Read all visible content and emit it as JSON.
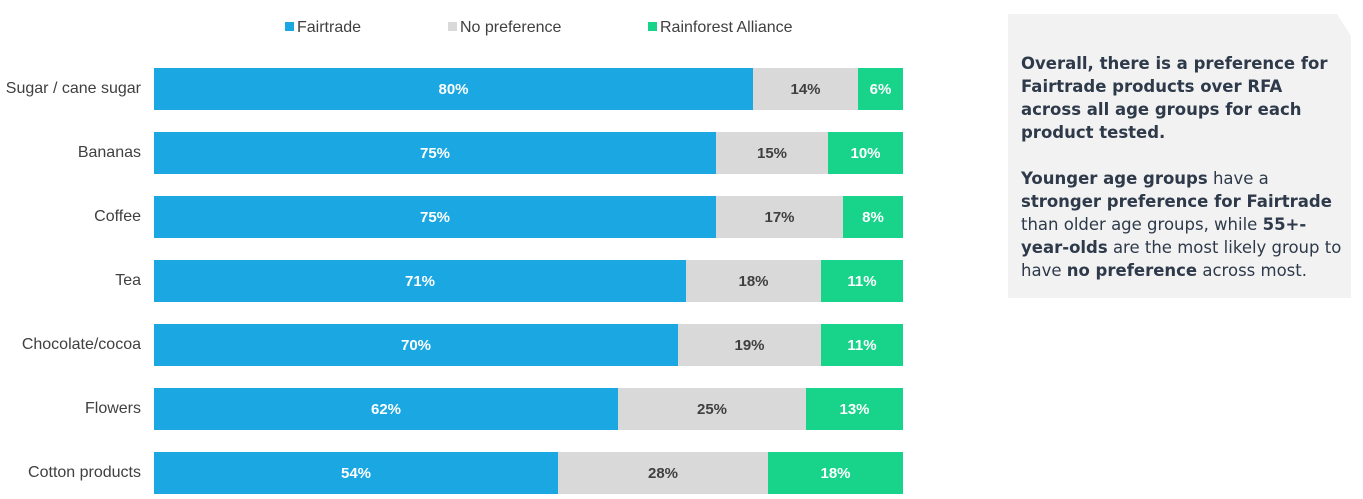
{
  "chart_data": {
    "type": "bar",
    "orientation": "horizontal",
    "stacked": true,
    "percent_stacked": true,
    "legend_position": "top",
    "categories": [
      "Sugar / cane sugar",
      "Bananas",
      "Coffee",
      "Tea",
      "Chocolate/cocoa",
      "Flowers",
      "Cotton products"
    ],
    "series": [
      {
        "name": "Fairtrade",
        "color": "#1aa7e2",
        "label_color": "#ffffff",
        "values": [
          80,
          75,
          75,
          71,
          70,
          62,
          54
        ]
      },
      {
        "name": "No preference",
        "color": "#d9d9d9",
        "label_color": "#404040",
        "values": [
          14,
          15,
          17,
          18,
          19,
          25,
          28
        ]
      },
      {
        "name": "Rainforest Alliance",
        "color": "#17d48a",
        "label_color": "#ffffff",
        "values": [
          6,
          10,
          8,
          11,
          11,
          13,
          18
        ]
      }
    ],
    "value_suffix": "%",
    "title": "",
    "xlabel": "",
    "ylabel": ""
  },
  "callout": {
    "p1": "Overall, there is a preference for Fairtrade products over RFA across all age groups for each product tested.",
    "p2": [
      {
        "text": "Younger age groups",
        "bold": true
      },
      {
        "text": " have a ",
        "bold": false
      },
      {
        "text": "stronger preference for Fairtrade",
        "bold": true
      },
      {
        "text": " than older age groups, while ",
        "bold": false
      },
      {
        "text": "55+-year-olds",
        "bold": true
      },
      {
        "text": " are the most likely group to have ",
        "bold": false
      },
      {
        "text": "no preference",
        "bold": true
      },
      {
        "text": " across most.",
        "bold": false
      }
    ]
  }
}
